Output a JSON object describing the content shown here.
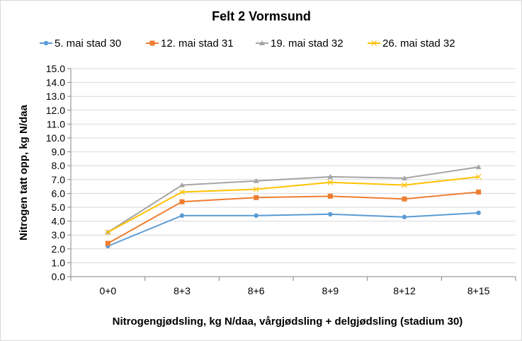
{
  "chart_data": {
    "type": "line",
    "title": "Felt 2 Vormsund",
    "xlabel": "Nitrogengjødsling, kg N/daa, vårgjødsling + delgjødsling (stadium 30)",
    "ylabel": "Nitrogen tatt opp, kg N/daa",
    "categories": [
      "0+0",
      "8+3",
      "8+6",
      "8+9",
      "8+12",
      "8+15"
    ],
    "ylim": [
      0,
      15
    ],
    "yticks": [
      "0.0",
      "1.0",
      "2.0",
      "3.0",
      "4.0",
      "5.0",
      "6.0",
      "7.0",
      "8.0",
      "9.0",
      "10.0",
      "11.0",
      "12.0",
      "13.0",
      "14.0",
      "15.0"
    ],
    "grid": true,
    "legend": "top",
    "series": [
      {
        "name": "5. mai stad 30",
        "color": "#5b9bd5",
        "marker": "circle",
        "values": [
          2.2,
          4.4,
          4.4,
          4.5,
          4.3,
          4.6
        ]
      },
      {
        "name": "12. mai stad 31",
        "color": "#ed7d31",
        "marker": "square",
        "values": [
          2.4,
          5.4,
          5.7,
          5.8,
          5.6,
          6.1
        ]
      },
      {
        "name": "19. mai stad 32",
        "color": "#a5a5a5",
        "marker": "triangle",
        "values": [
          3.2,
          6.6,
          6.9,
          7.2,
          7.1,
          7.9
        ]
      },
      {
        "name": "26. mai stad 32",
        "color": "#ffc000",
        "marker": "x",
        "values": [
          3.2,
          6.1,
          6.3,
          6.8,
          6.6,
          7.2
        ]
      }
    ]
  }
}
